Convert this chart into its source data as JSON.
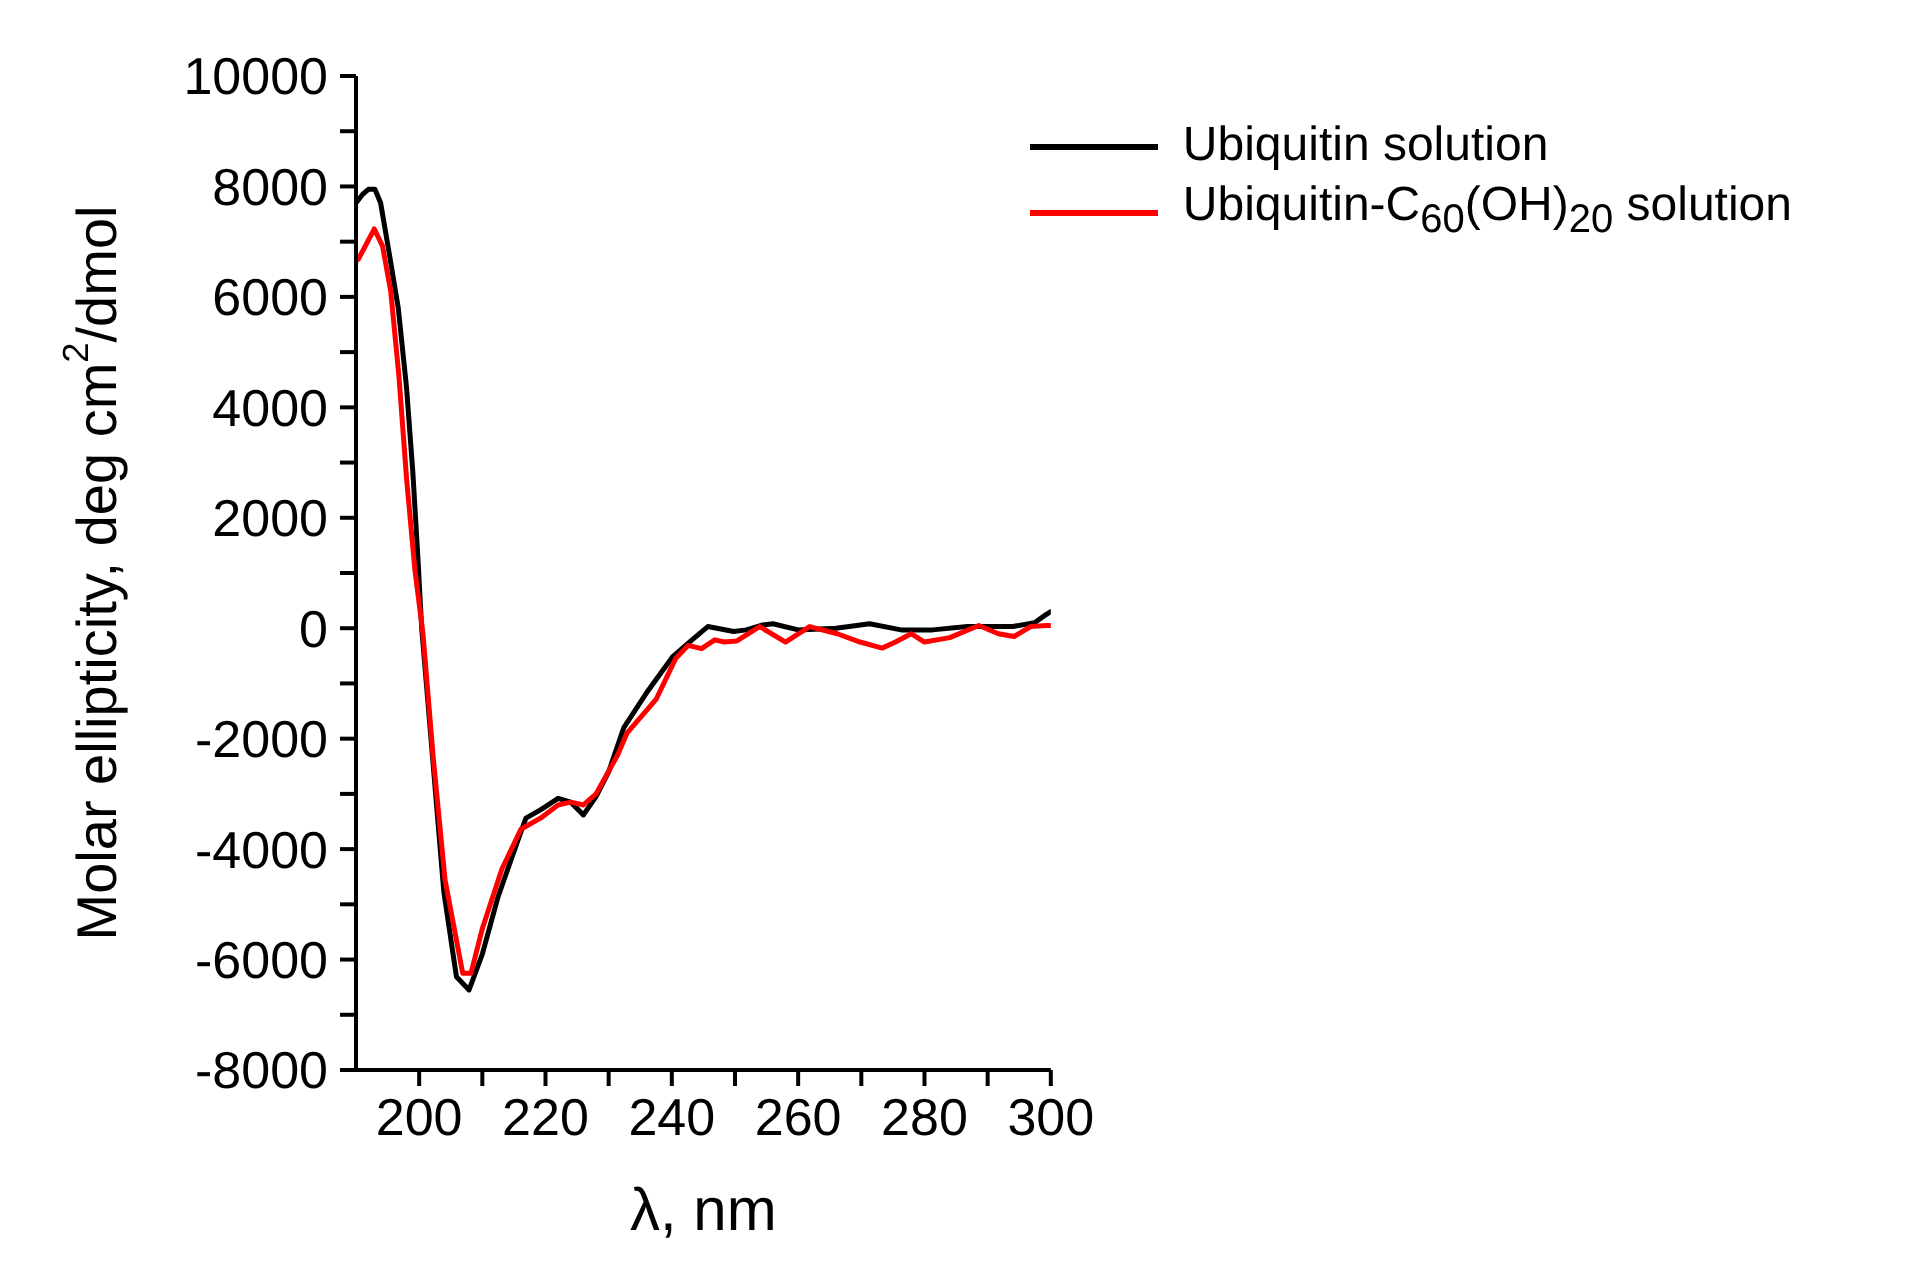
{
  "chart_data": {
    "type": "line",
    "xlabel": "λ, nm",
    "ylabel": "Molar ellipticity, deg cm$^{2}$/dmol",
    "xlim": [
      190,
      300
    ],
    "ylim": [
      -8000,
      10000
    ],
    "xticks": [
      200,
      {
        "value": 210,
        "label": null
      },
      220,
      {
        "value": 230,
        "label": null
      },
      240,
      {
        "value": 250,
        "label": null
      },
      260,
      {
        "value": 270,
        "label": null
      },
      280,
      {
        "value": 290,
        "label": null
      },
      300
    ],
    "yticks": [
      -8000,
      {
        "value": -7000,
        "label": null
      },
      -6000,
      {
        "value": -5000,
        "label": null
      },
      -4000,
      {
        "value": -3000,
        "label": null
      },
      -2000,
      {
        "value": -1000,
        "label": null
      },
      0,
      {
        "value": 1000,
        "label": null
      },
      2000,
      {
        "value": 3000,
        "label": null
      },
      4000,
      {
        "value": 5000,
        "label": null
      },
      6000,
      {
        "value": 7000,
        "label": null
      },
      8000,
      {
        "value": 9000,
        "label": null
      },
      10000
    ],
    "legend": "top right",
    "grid": false,
    "marker": "none",
    "line_style": "solid",
    "series": [
      {
        "name": "Ubiquitin solution",
        "color": "#000000",
        "x": [
          190,
          191,
          192,
          193,
          193.9,
          195.2,
          196.7,
          198,
          199,
          199.8,
          200.4,
          202.1,
          203.9,
          205.9,
          207.9,
          210,
          212.5,
          215.6,
          216.9,
          219.2,
          220,
          222,
          224,
          226,
          228,
          230,
          232.4,
          236,
          240.1,
          243.2,
          245.7,
          249.8,
          251.8,
          254.4,
          256,
          260,
          266,
          271.3,
          276.3,
          281.3,
          286.8,
          294,
          297.4,
          299.3,
          300
        ],
        "values": [
          7700,
          7850,
          7950,
          7950,
          7700,
          6830,
          5790,
          4360,
          2820,
          1280,
          0,
          -2310,
          -4770,
          -6310,
          -6550,
          -5900,
          -4860,
          -3850,
          -3440,
          -3290,
          -3230,
          -3080,
          -3150,
          -3380,
          -3050,
          -2600,
          -1800,
          -1170,
          -520,
          -210,
          30,
          -60,
          -30,
          60,
          80,
          -30,
          0,
          80,
          -30,
          -30,
          30,
          30,
          100,
          250,
          300
        ]
      },
      {
        "name": "Ubiquitin-C$_{60}$(OH)$_{20}$ solution",
        "color": "#ff0000",
        "x": [
          190,
          190.4,
          192.9,
          194.2,
          195.5,
          196.8,
          198,
          199.3,
          200.6,
          202.2,
          204.1,
          206.9,
          208.2,
          210,
          213.1,
          216.1,
          219.2,
          222,
          224,
          226,
          228,
          231.4,
          232.9,
          237.5,
          240.6,
          242.6,
          244.7,
          246.8,
          248.3,
          250.3,
          253.9,
          258,
          261.8,
          266.2,
          269.8,
          273.3,
          275.4,
          277.9,
          280,
          284,
          288.6,
          291.7,
          294.2,
          296.8,
          299.3,
          300
        ],
        "values": [
          6650,
          6690,
          7230,
          6920,
          6100,
          4560,
          2720,
          1080,
          -100,
          -2310,
          -4560,
          -6250,
          -6250,
          -5440,
          -4360,
          -3640,
          -3440,
          -3200,
          -3150,
          -3200,
          -3000,
          -2300,
          -1900,
          -1290,
          -550,
          -310,
          -370,
          -210,
          -250,
          -230,
          30,
          -250,
          30,
          -100,
          -250,
          -360,
          -250,
          -100,
          -250,
          -170,
          50,
          -100,
          -150,
          30,
          50,
          50
        ]
      }
    ]
  }
}
